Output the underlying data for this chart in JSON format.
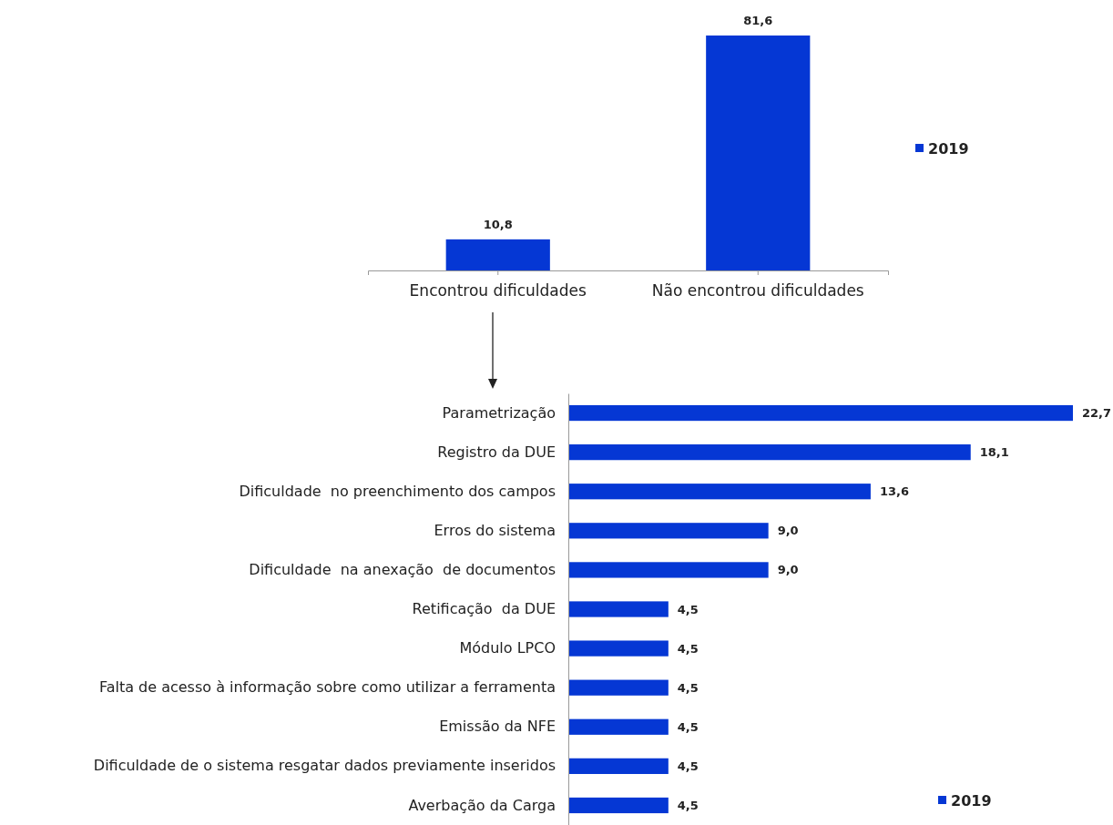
{
  "chart_data": [
    {
      "type": "bar",
      "categories": [
        "Encontrou dificuldades",
        "Não encontrou dificuldades"
      ],
      "series": [
        {
          "name": "2019",
          "color": "#0537d4",
          "values": [
            10.8,
            81.6
          ],
          "value_labels": [
            "10,8",
            "81,6"
          ]
        }
      ],
      "legend": "right"
    },
    {
      "type": "bar",
      "orientation": "horizontal",
      "categories": [
        "Parametrização",
        "Registro da DUE",
        "Dificuldade  no preenchimento dos campos",
        "Erros do sistema",
        "Dificuldade  na anexação  de documentos",
        "Retificação  da DUE",
        "Módulo LPCO",
        "Falta de acesso à informação sobre como utilizar a ferramenta",
        "Emissão da NFE",
        "Dificuldade de o sistema resgatar dados previamente inseridos",
        "Averbação da Carga"
      ],
      "series": [
        {
          "name": "2019",
          "color": "#0537d4",
          "values": [
            22.7,
            18.1,
            13.6,
            9.0,
            9.0,
            4.5,
            4.5,
            4.5,
            4.5,
            4.5,
            4.5
          ],
          "value_labels": [
            "22,7",
            "18,1",
            "13,6",
            "9,0",
            "9,0",
            "4,5",
            "4,5",
            "4,5",
            "4,5",
            "4,5",
            "4,5"
          ]
        }
      ],
      "legend": "bottom right"
    }
  ]
}
